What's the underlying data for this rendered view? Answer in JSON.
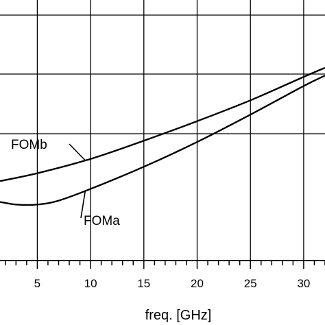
{
  "chart_data": {
    "type": "line",
    "title": "",
    "xlabel": "freq. [GHz]",
    "ylabel": "",
    "xlim": [
      1.5,
      32
    ],
    "ylim": [
      0,
      1
    ],
    "x_ticks": [
      5,
      10,
      15,
      20,
      25,
      30
    ],
    "x_tick_labels": [
      "5",
      "10",
      "15",
      "20",
      "25",
      "30"
    ],
    "grid": true,
    "legend": "none",
    "series": [
      {
        "name": "FOMb",
        "x": [
          1.5,
          5,
          10,
          15,
          20,
          25,
          30,
          32
        ],
        "values": [
          0.305,
          0.335,
          0.39,
          0.46,
          0.535,
          0.615,
          0.705,
          0.74
        ]
      },
      {
        "name": "FOMa",
        "x": [
          1.5,
          3,
          5,
          7,
          10,
          15,
          20,
          25,
          30,
          32
        ],
        "values": [
          0.225,
          0.215,
          0.215,
          0.23,
          0.275,
          0.36,
          0.455,
          0.56,
          0.67,
          0.71
        ]
      }
    ],
    "annotations": [
      {
        "text": "FOMb",
        "series": "FOMb",
        "at_x": 9.5
      },
      {
        "text": "FOMa",
        "series": "FOMa",
        "at_x": 9.5
      }
    ],
    "colors": {
      "line": "#000000",
      "grid": "#000000",
      "background": "#ffffff"
    }
  }
}
